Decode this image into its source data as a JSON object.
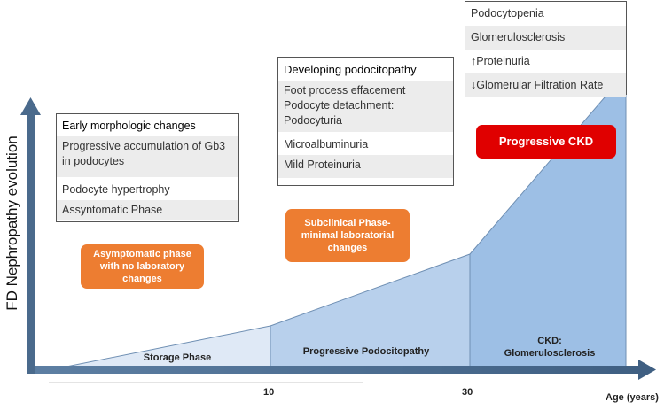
{
  "y_axis_label": "FD Nephropathy evolution",
  "x_axis_label": "Age (years)",
  "x_ticks": [
    "10",
    "30"
  ],
  "phases": {
    "storage": "Storage Phase",
    "progressive": "Progressive Podocitopathy",
    "ckd_line1": "CKD:",
    "ckd_line2": "Glomerulosclerosis"
  },
  "box_early": {
    "header": "Early morphologic changes",
    "rows": [
      "Progressive accumulation of Gb3 in podocytes",
      "Podocyte hypertrophy",
      "Assyntomatic Phase"
    ]
  },
  "box_developing": {
    "header": "Developing podocitopathy",
    "rows": [
      "Foot process effacement Podocyte detachment: Podocyturia",
      "Microalbuminuria",
      "Mild Proteinuria"
    ]
  },
  "box_ckd": {
    "rows": [
      "Podocytopenia",
      "Glomerulosclerosis",
      "↑Proteinuria",
      "↓Glomerular Filtration Rate"
    ]
  },
  "callouts": {
    "asymptomatic": "Asymptomatic phase with no laboratory changes",
    "subclinical": "Subclinical Phase- minimal laboratorial changes",
    "progressive_ckd": "Progressive CKD"
  },
  "colors": {
    "axis": "#4a6a8c",
    "storage_fill": "#dfe9f6",
    "progressive_fill": "#b8d0ec",
    "ckd_fill": "#9dbfe5",
    "orange": "#ed7d31",
    "red": "#e00000"
  }
}
